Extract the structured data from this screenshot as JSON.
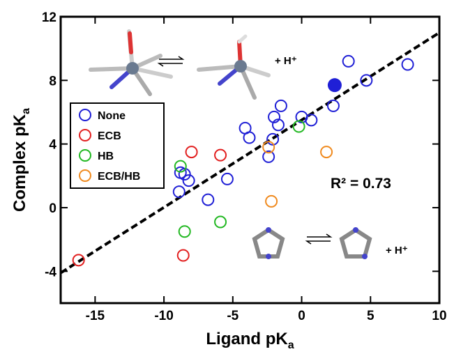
{
  "chart_data": {
    "type": "scatter",
    "xlabel": "Ligand pK",
    "xlabel_sub": "a",
    "ylabel": "Complex pK",
    "ylabel_sub": "a",
    "xlim": [
      -17.5,
      10
    ],
    "ylim": [
      -6,
      12
    ],
    "xticks": [
      -15,
      -10,
      -5,
      0,
      5,
      10
    ],
    "yticks": [
      -4,
      0,
      4,
      8,
      12
    ],
    "series": [
      {
        "name": "None",
        "color": "#1f1fd6",
        "x": [
          3.4,
          7.7,
          4.7,
          2.3,
          0.0,
          0.7,
          -1.5,
          -2.0,
          -1.7,
          -4.1,
          -3.8,
          -2.1,
          -2.4,
          -8.8,
          -8.5,
          -8.2,
          -5.4,
          -6.8,
          -8.9
        ],
        "y": [
          9.2,
          9.0,
          8.0,
          6.4,
          5.7,
          5.5,
          6.4,
          5.7,
          5.2,
          5.0,
          4.4,
          4.3,
          3.2,
          2.2,
          2.1,
          1.7,
          1.8,
          0.5,
          1.0
        ]
      },
      {
        "name": "ECB",
        "color": "#e21f1f",
        "x": [
          -8.0,
          -5.9,
          -16.2,
          -8.6
        ],
        "y": [
          3.5,
          3.3,
          -3.3,
          -3.0
        ]
      },
      {
        "name": "HB",
        "color": "#22b822",
        "x": [
          -8.8,
          -0.2,
          -8.5,
          -5.9
        ],
        "y": [
          2.6,
          5.1,
          -1.5,
          -0.9
        ]
      },
      {
        "name": "ECB/HB",
        "color": "#f08a1e",
        "x": [
          -2.4,
          1.8,
          -2.2
        ],
        "y": [
          3.8,
          3.5,
          0.4
        ]
      }
    ],
    "highlight_point": {
      "x": 2.4,
      "y": 7.7,
      "color": "#1f1fd6"
    },
    "fit_line": {
      "x": [
        -17.5,
        10
      ],
      "y": [
        -4.1,
        11.0
      ]
    },
    "annotations": [
      "R² = 0.73",
      "+ H⁺",
      "+ H⁺"
    ]
  }
}
